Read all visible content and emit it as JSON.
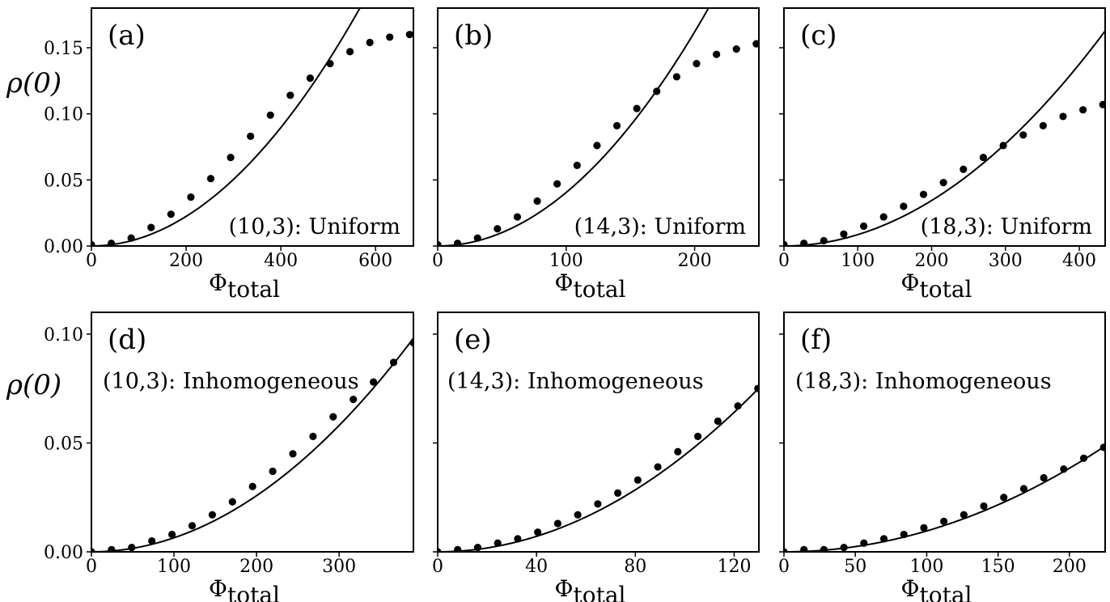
{
  "figure": {
    "ylabel_top": "ρ(0)",
    "ylabel_bottom": "ρ(0)"
  },
  "chart_data": [
    {
      "id": "a",
      "type": "scatter",
      "label": "(a)",
      "note": "(10,3):  Uniform",
      "xlabel": "Φ",
      "xlabel_sub": "total",
      "ylabel": "ρ(0)",
      "xlim": [
        0,
        680
      ],
      "ylim": [
        0,
        0.18
      ],
      "xticks": [
        0,
        200,
        400,
        600
      ],
      "yticks": [
        0.0,
        0.05,
        0.1,
        0.15
      ],
      "ytick_labels": [
        "0.00",
        "0.05",
        "0.10",
        "0.15"
      ],
      "series": [
        {
          "kind": "points",
          "x": [
            0,
            42,
            84,
            126,
            168,
            210,
            252,
            294,
            336,
            378,
            420,
            462,
            504,
            546,
            588,
            630,
            672
          ],
          "y": [
            0.001,
            0.002,
            0.006,
            0.014,
            0.024,
            0.037,
            0.051,
            0.067,
            0.083,
            0.099,
            0.114,
            0.127,
            0.138,
            0.147,
            0.154,
            0.158,
            0.16
          ]
        },
        {
          "kind": "curve",
          "coef": 5.6e-07,
          "power": 2,
          "xmax": 680
        }
      ]
    },
    {
      "id": "b",
      "type": "scatter",
      "label": "(b)",
      "note": "(14,3):  Uniform",
      "xlabel": "Φ",
      "xlabel_sub": "total",
      "ylabel": "ρ(0)",
      "xlim": [
        0,
        250
      ],
      "ylim": [
        0,
        0.18
      ],
      "xticks": [
        0,
        100,
        200
      ],
      "yticks": [
        0.0,
        0.05,
        0.1,
        0.15
      ],
      "ytick_labels": [
        "",
        "",
        "",
        ""
      ],
      "series": [
        {
          "kind": "points",
          "x": [
            0,
            15.5,
            31,
            46.5,
            62,
            77.5,
            93,
            108.5,
            124,
            139.5,
            155,
            170.5,
            186,
            201.5,
            217,
            232.5,
            248
          ],
          "y": [
            0.001,
            0.002,
            0.006,
            0.013,
            0.022,
            0.034,
            0.047,
            0.061,
            0.076,
            0.091,
            0.104,
            0.117,
            0.128,
            0.138,
            0.145,
            0.149,
            0.153
          ]
        },
        {
          "kind": "curve",
          "coef": 4.05e-06,
          "power": 2,
          "xmax": 250
        }
      ]
    },
    {
      "id": "c",
      "type": "scatter",
      "label": "(c)",
      "note": "(18,3):  Uniform",
      "xlabel": "Φ",
      "xlabel_sub": "total",
      "ylabel": "ρ(0)",
      "xlim": [
        0,
        435
      ],
      "ylim": [
        0,
        0.18
      ],
      "xticks": [
        0,
        100,
        200,
        300,
        400
      ],
      "yticks": [
        0.0,
        0.05,
        0.1,
        0.15
      ],
      "ytick_labels": [
        "",
        "",
        "",
        ""
      ],
      "series": [
        {
          "kind": "points",
          "x": [
            0,
            27,
            54,
            81,
            108,
            135,
            162,
            189,
            216,
            243,
            270,
            297,
            324,
            351,
            378,
            405,
            432
          ],
          "y": [
            0.001,
            0.002,
            0.004,
            0.009,
            0.015,
            0.022,
            0.03,
            0.039,
            0.048,
            0.058,
            0.067,
            0.076,
            0.084,
            0.091,
            0.098,
            0.103,
            0.107
          ]
        },
        {
          "kind": "curve",
          "coef": 8.6e-07,
          "power": 2,
          "xmax": 435
        }
      ]
    },
    {
      "id": "d",
      "type": "scatter",
      "label": "(d)",
      "note": "(10,3):  Inhomogeneous",
      "xlabel": "Φ",
      "xlabel_sub": "total",
      "ylabel": "ρ(0)",
      "xlim": [
        0,
        390
      ],
      "ylim": [
        0,
        0.11
      ],
      "xticks": [
        0,
        100,
        200,
        300
      ],
      "yticks": [
        0.0,
        0.05,
        0.1
      ],
      "ytick_labels": [
        "0.00",
        "0.05",
        "0.10"
      ],
      "series": [
        {
          "kind": "points",
          "x": [
            0,
            24.4,
            48.8,
            73.2,
            97.6,
            122,
            146.4,
            170.8,
            195.2,
            219.6,
            244,
            268.4,
            292.8,
            317.2,
            341.6,
            366,
            390
          ],
          "y": [
            0.0,
            0.001,
            0.002,
            0.005,
            0.008,
            0.012,
            0.017,
            0.023,
            0.03,
            0.037,
            0.045,
            0.053,
            0.062,
            0.07,
            0.078,
            0.087,
            0.096
          ]
        },
        {
          "kind": "curve",
          "coef": 6.45e-07,
          "power": 2,
          "xmax": 390
        }
      ]
    },
    {
      "id": "e",
      "type": "scatter",
      "label": "(e)",
      "note": "(14,3):  Inhomogeneous",
      "xlabel": "Φ",
      "xlabel_sub": "total",
      "ylabel": "ρ(0)",
      "xlim": [
        0,
        130
      ],
      "ylim": [
        0,
        0.11
      ],
      "xticks": [
        0,
        40,
        80,
        120
      ],
      "yticks": [
        0.0,
        0.05,
        0.1
      ],
      "ytick_labels": [
        "",
        "",
        ""
      ],
      "series": [
        {
          "kind": "points",
          "x": [
            0,
            8.1,
            16.2,
            24.3,
            32.4,
            40.5,
            48.6,
            56.7,
            64.8,
            72.9,
            81,
            89.1,
            97.2,
            105.3,
            113.4,
            121.5,
            129.6
          ],
          "y": [
            0.0,
            0.001,
            0.002,
            0.004,
            0.006,
            0.009,
            0.013,
            0.017,
            0.022,
            0.027,
            0.033,
            0.039,
            0.046,
            0.053,
            0.06,
            0.067,
            0.075
          ]
        },
        {
          "kind": "curve",
          "coef": 4.45e-06,
          "power": 2,
          "xmax": 130
        }
      ]
    },
    {
      "id": "f",
      "type": "scatter",
      "label": "(f)",
      "note": "(18,3):  Inhomogeneous",
      "xlabel": "Φ",
      "xlabel_sub": "total",
      "ylabel": "ρ(0)",
      "xlim": [
        0,
        225
      ],
      "ylim": [
        0,
        0.11
      ],
      "xticks": [
        0,
        50,
        100,
        150,
        200
      ],
      "yticks": [
        0.0,
        0.05,
        0.1
      ],
      "ytick_labels": [
        "",
        "",
        ""
      ],
      "series": [
        {
          "kind": "points",
          "x": [
            0,
            14,
            28,
            42,
            56,
            70,
            84,
            98,
            112,
            126,
            140,
            154,
            168,
            182,
            196,
            210,
            224
          ],
          "y": [
            0.0,
            0.001,
            0.001,
            0.002,
            0.004,
            0.006,
            0.008,
            0.011,
            0.014,
            0.017,
            0.021,
            0.025,
            0.029,
            0.034,
            0.038,
            0.043,
            0.048
          ]
        },
        {
          "kind": "curve",
          "coef": 9.6e-07,
          "power": 2,
          "xmax": 225
        }
      ]
    }
  ]
}
